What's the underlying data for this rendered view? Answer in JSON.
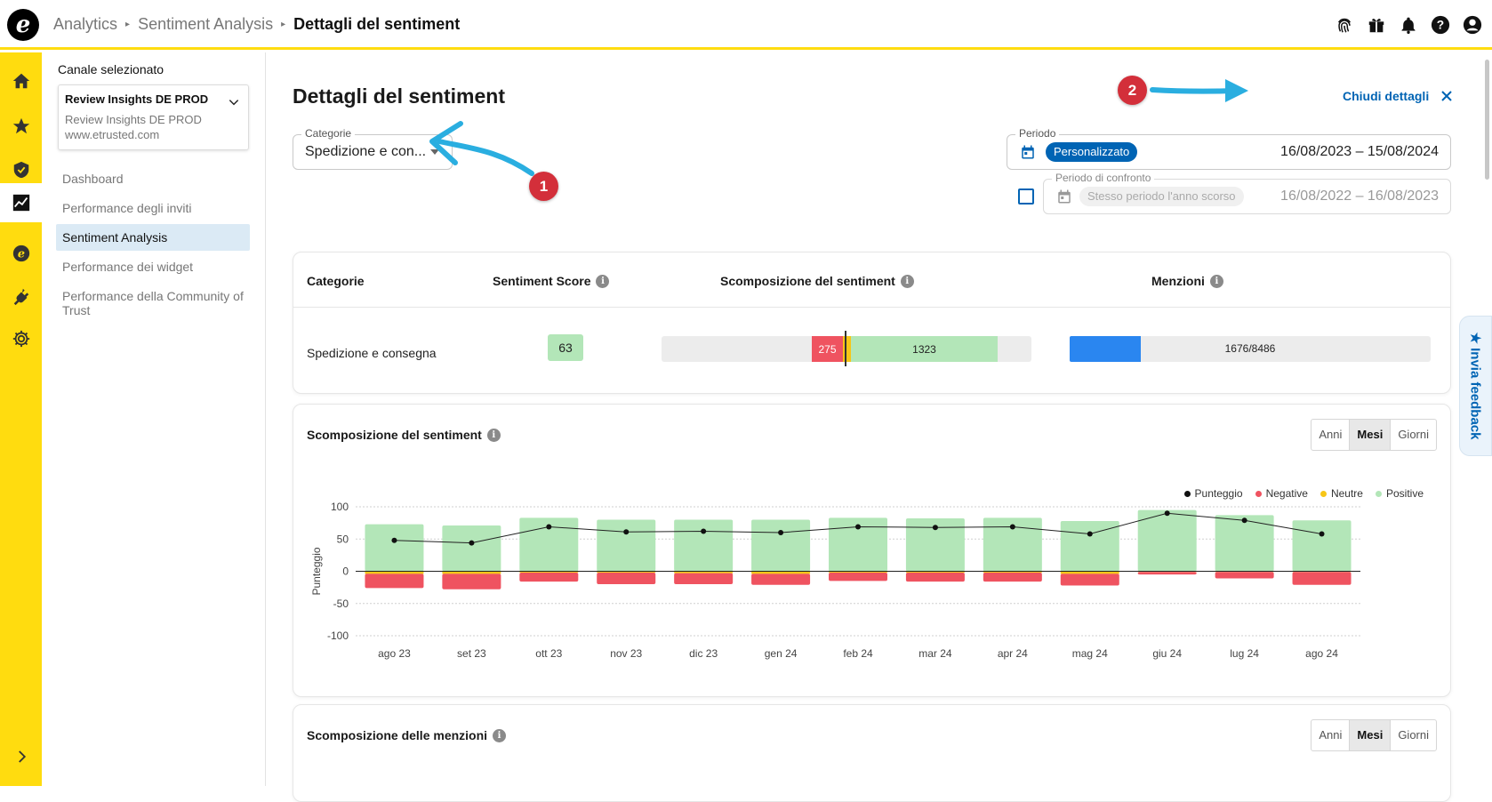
{
  "topbar": {
    "logo_letter": "e",
    "breadcrumb": [
      "Analytics",
      "Sentiment Analysis"
    ],
    "current": "Dettagli del sentiment",
    "icons": [
      "fingerprint-icon",
      "gift-icon",
      "bell-icon",
      "help-icon",
      "account-icon"
    ]
  },
  "rail": {
    "icons": [
      "home-icon",
      "star-icon",
      "shield-icon",
      "chart-icon",
      "etrusted-icon",
      "plug-icon",
      "gear-icon"
    ],
    "active": "chart-icon",
    "expand_icon": "chevron-right-icon"
  },
  "sidebar": {
    "title": "Canale selezionato",
    "channel": {
      "name": "Review Insights DE PROD",
      "sub1": "Review Insights DE PROD",
      "sub2": "www.etrusted.com"
    },
    "items": [
      {
        "label": "Dashboard"
      },
      {
        "label": "Performance degli inviti"
      },
      {
        "label": "Sentiment Analysis"
      },
      {
        "label": "Performance dei widget"
      },
      {
        "label": "Performance della Community of Trust"
      }
    ],
    "active_index": 2
  },
  "main": {
    "title": "Dettagli del sentiment",
    "close_label": "Chiudi dettagli",
    "category_field": {
      "label": "Categorie",
      "value": "Spedizione e con..."
    },
    "period_field": {
      "label": "Periodo",
      "pill": "Personalizzato",
      "dates": "16/08/2023 – 15/08/2024"
    },
    "compare_field": {
      "label": "Periodo di confronto",
      "pill": "Stesso periodo l'anno scorso",
      "dates": "16/08/2022 – 16/08/2023",
      "checked": false
    },
    "annotations": [
      "1",
      "2"
    ]
  },
  "summary_table": {
    "headers": [
      "Categorie",
      "Sentiment Score",
      "Scomposizione del sentiment",
      "Menzioni"
    ],
    "row": {
      "category": "Spedizione e consegna",
      "score": "63",
      "negative": "275",
      "positive": "1323",
      "mentions": "1676/8486",
      "mentions_fraction": 0.1975
    }
  },
  "sentiment_chart": {
    "title": "Scomposizione del sentiment",
    "toggle": [
      "Anni",
      "Mesi",
      "Giorni"
    ],
    "toggle_selected": "Mesi",
    "legend": [
      {
        "label": "Punteggio",
        "color": "#111111"
      },
      {
        "label": "Negative",
        "color": "#ef5360"
      },
      {
        "label": "Neutre",
        "color": "#f7c617"
      },
      {
        "label": "Positive",
        "color": "#b3e6b8"
      }
    ]
  },
  "chart_data": {
    "type": "bar",
    "ylabel": "Punteggio",
    "ylim": [
      -100,
      100
    ],
    "yticks": [
      100,
      50,
      0,
      -50,
      -100
    ],
    "categories": [
      "ago 23",
      "set 23",
      "ott 23",
      "nov 23",
      "dic 23",
      "gen 24",
      "feb 24",
      "mar 24",
      "apr 24",
      "mag 24",
      "giu 24",
      "lug 24",
      "ago 24"
    ],
    "series": [
      {
        "name": "Positive",
        "values": [
          73,
          71,
          83,
          80,
          80,
          80,
          83,
          82,
          83,
          78,
          95,
          87,
          79
        ]
      },
      {
        "name": "Neutre",
        "values": [
          -4,
          -4,
          -2,
          -2,
          -3,
          -4,
          -2,
          -2,
          -2,
          -4,
          -1,
          -1,
          -1
        ]
      },
      {
        "name": "Negative",
        "values": [
          -22,
          -24,
          -14,
          -18,
          -17,
          -17,
          -13,
          -14,
          -14,
          -18,
          -4,
          -10,
          -20
        ]
      },
      {
        "name": "Punteggio",
        "values": [
          48,
          44,
          69,
          61,
          62,
          60,
          69,
          68,
          69,
          58,
          90,
          79,
          58
        ]
      }
    ],
    "grid": true,
    "legend_position": "top-right"
  },
  "mentions_chart": {
    "title": "Scomposizione delle menzioni",
    "toggle": [
      "Anni",
      "Mesi",
      "Giorni"
    ],
    "toggle_selected": "Mesi"
  },
  "feedback_tab": {
    "label": "★ Invia feedback"
  }
}
